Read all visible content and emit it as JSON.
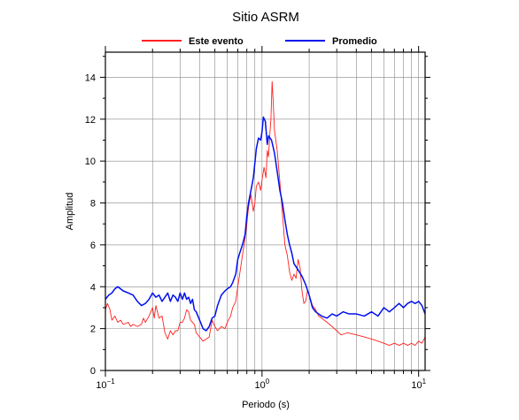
{
  "chart_data": {
    "type": "line",
    "title": "Sitio ASRM",
    "xlabel": "Periodo (s)",
    "ylabel": "Amplitud",
    "xscale": "log",
    "xlim": [
      0.1,
      11.0
    ],
    "ylim": [
      0,
      15.2
    ],
    "grid": true,
    "legend_position": "top",
    "x_ticks": [
      {
        "value": 0.1,
        "base": "10",
        "exp": "−1"
      },
      {
        "value": 1,
        "base": "10",
        "exp": "0"
      },
      {
        "value": 10,
        "base": "10",
        "exp": "1"
      }
    ],
    "y_ticks": [
      0,
      2,
      4,
      6,
      8,
      10,
      12,
      14
    ],
    "series": [
      {
        "name": "Este evento",
        "color": "#ff2020",
        "points": [
          [
            0.1,
            2.9
          ],
          [
            0.103,
            3.2
          ],
          [
            0.107,
            2.9
          ],
          [
            0.11,
            2.4
          ],
          [
            0.115,
            2.6
          ],
          [
            0.12,
            2.3
          ],
          [
            0.125,
            2.4
          ],
          [
            0.13,
            2.2
          ],
          [
            0.14,
            2.3
          ],
          [
            0.145,
            2.1
          ],
          [
            0.15,
            2.2
          ],
          [
            0.16,
            2.1
          ],
          [
            0.17,
            2.2
          ],
          [
            0.175,
            2.5
          ],
          [
            0.18,
            2.3
          ],
          [
            0.19,
            2.6
          ],
          [
            0.2,
            3.0
          ],
          [
            0.205,
            2.5
          ],
          [
            0.21,
            3.1
          ],
          [
            0.22,
            2.5
          ],
          [
            0.23,
            2.6
          ],
          [
            0.24,
            1.8
          ],
          [
            0.25,
            1.5
          ],
          [
            0.26,
            1.9
          ],
          [
            0.27,
            1.7
          ],
          [
            0.28,
            1.9
          ],
          [
            0.29,
            1.9
          ],
          [
            0.3,
            2.3
          ],
          [
            0.31,
            2.3
          ],
          [
            0.32,
            2.5
          ],
          [
            0.33,
            2.9
          ],
          [
            0.34,
            2.8
          ],
          [
            0.35,
            2.4
          ],
          [
            0.36,
            2.3
          ],
          [
            0.37,
            2.2
          ],
          [
            0.38,
            1.8
          ],
          [
            0.4,
            1.6
          ],
          [
            0.42,
            1.4
          ],
          [
            0.44,
            1.5
          ],
          [
            0.46,
            1.6
          ],
          [
            0.48,
            2.4
          ],
          [
            0.5,
            2.1
          ],
          [
            0.52,
            1.9
          ],
          [
            0.55,
            2.1
          ],
          [
            0.58,
            2.0
          ],
          [
            0.6,
            2.3
          ],
          [
            0.63,
            2.6
          ],
          [
            0.65,
            3.0
          ],
          [
            0.68,
            3.3
          ],
          [
            0.7,
            4.0
          ],
          [
            0.72,
            4.6
          ],
          [
            0.75,
            5.5
          ],
          [
            0.78,
            6.3
          ],
          [
            0.8,
            7.0
          ],
          [
            0.82,
            7.8
          ],
          [
            0.85,
            8.4
          ],
          [
            0.88,
            7.6
          ],
          [
            0.9,
            8.0
          ],
          [
            0.92,
            8.8
          ],
          [
            0.95,
            9.0
          ],
          [
            0.98,
            8.6
          ],
          [
            1.0,
            9.1
          ],
          [
            1.03,
            9.7
          ],
          [
            1.06,
            9.2
          ],
          [
            1.08,
            10.5
          ],
          [
            1.1,
            10.2
          ],
          [
            1.12,
            11.2
          ],
          [
            1.14,
            12.0
          ],
          [
            1.16,
            13.8
          ],
          [
            1.18,
            12.8
          ],
          [
            1.2,
            11.5
          ],
          [
            1.25,
            10.5
          ],
          [
            1.3,
            9.0
          ],
          [
            1.35,
            7.5
          ],
          [
            1.4,
            6.0
          ],
          [
            1.45,
            5.5
          ],
          [
            1.5,
            4.7
          ],
          [
            1.55,
            4.3
          ],
          [
            1.6,
            4.6
          ],
          [
            1.65,
            4.4
          ],
          [
            1.7,
            5.3
          ],
          [
            1.75,
            4.9
          ],
          [
            1.8,
            3.8
          ],
          [
            1.85,
            3.2
          ],
          [
            1.9,
            3.3
          ],
          [
            1.95,
            3.8
          ],
          [
            2.0,
            3.6
          ],
          [
            2.1,
            3.1
          ],
          [
            2.2,
            2.9
          ],
          [
            2.3,
            2.6
          ],
          [
            2.4,
            2.5
          ],
          [
            2.6,
            2.3
          ],
          [
            2.8,
            2.1
          ],
          [
            3.0,
            1.9
          ],
          [
            3.2,
            1.7
          ],
          [
            3.5,
            1.8
          ],
          [
            4.0,
            1.7
          ],
          [
            4.5,
            1.6
          ],
          [
            5.0,
            1.5
          ],
          [
            5.5,
            1.4
          ],
          [
            6.0,
            1.3
          ],
          [
            6.5,
            1.2
          ],
          [
            7.0,
            1.3
          ],
          [
            7.5,
            1.2
          ],
          [
            8.0,
            1.3
          ],
          [
            8.5,
            1.2
          ],
          [
            9.0,
            1.3
          ],
          [
            9.5,
            1.2
          ],
          [
            10.0,
            1.4
          ],
          [
            10.5,
            1.3
          ],
          [
            11.0,
            1.6
          ]
        ]
      },
      {
        "name": "Promedio",
        "color": "#0010ee",
        "points": [
          [
            0.1,
            3.4
          ],
          [
            0.105,
            3.6
          ],
          [
            0.11,
            3.7
          ],
          [
            0.115,
            3.9
          ],
          [
            0.12,
            4.0
          ],
          [
            0.13,
            3.8
          ],
          [
            0.14,
            3.7
          ],
          [
            0.15,
            3.6
          ],
          [
            0.16,
            3.3
          ],
          [
            0.17,
            3.1
          ],
          [
            0.18,
            3.2
          ],
          [
            0.19,
            3.4
          ],
          [
            0.2,
            3.7
          ],
          [
            0.21,
            3.5
          ],
          [
            0.22,
            3.6
          ],
          [
            0.23,
            3.3
          ],
          [
            0.24,
            3.5
          ],
          [
            0.25,
            3.7
          ],
          [
            0.26,
            3.3
          ],
          [
            0.27,
            3.6
          ],
          [
            0.28,
            3.5
          ],
          [
            0.29,
            3.3
          ],
          [
            0.3,
            3.7
          ],
          [
            0.31,
            3.4
          ],
          [
            0.32,
            3.7
          ],
          [
            0.33,
            3.4
          ],
          [
            0.34,
            3.5
          ],
          [
            0.35,
            3.2
          ],
          [
            0.36,
            3.4
          ],
          [
            0.37,
            2.9
          ],
          [
            0.38,
            2.8
          ],
          [
            0.4,
            2.4
          ],
          [
            0.42,
            2.0
          ],
          [
            0.44,
            1.9
          ],
          [
            0.46,
            2.1
          ],
          [
            0.48,
            2.5
          ],
          [
            0.5,
            2.6
          ],
          [
            0.52,
            3.1
          ],
          [
            0.55,
            3.6
          ],
          [
            0.58,
            3.8
          ],
          [
            0.6,
            3.9
          ],
          [
            0.63,
            4.0
          ],
          [
            0.65,
            4.2
          ],
          [
            0.68,
            4.6
          ],
          [
            0.7,
            5.3
          ],
          [
            0.72,
            5.6
          ],
          [
            0.75,
            6.0
          ],
          [
            0.78,
            6.5
          ],
          [
            0.8,
            7.4
          ],
          [
            0.82,
            8.0
          ],
          [
            0.85,
            8.6
          ],
          [
            0.88,
            9.2
          ],
          [
            0.9,
            9.9
          ],
          [
            0.92,
            10.6
          ],
          [
            0.95,
            11.1
          ],
          [
            0.98,
            11.0
          ],
          [
            1.0,
            11.4
          ],
          [
            1.02,
            12.1
          ],
          [
            1.05,
            11.9
          ],
          [
            1.08,
            10.8
          ],
          [
            1.1,
            11.2
          ],
          [
            1.15,
            11.0
          ],
          [
            1.2,
            10.4
          ],
          [
            1.25,
            9.5
          ],
          [
            1.3,
            8.6
          ],
          [
            1.35,
            8.0
          ],
          [
            1.4,
            7.2
          ],
          [
            1.45,
            6.5
          ],
          [
            1.5,
            6.0
          ],
          [
            1.55,
            5.6
          ],
          [
            1.6,
            5.1
          ],
          [
            1.7,
            4.8
          ],
          [
            1.8,
            4.5
          ],
          [
            1.9,
            4.1
          ],
          [
            2.0,
            3.6
          ],
          [
            2.1,
            3.0
          ],
          [
            2.2,
            2.8
          ],
          [
            2.4,
            2.6
          ],
          [
            2.6,
            2.5
          ],
          [
            2.8,
            2.7
          ],
          [
            3.0,
            2.6
          ],
          [
            3.3,
            2.8
          ],
          [
            3.6,
            2.7
          ],
          [
            4.0,
            2.7
          ],
          [
            4.5,
            2.6
          ],
          [
            5.0,
            2.8
          ],
          [
            5.5,
            2.6
          ],
          [
            6.0,
            3.0
          ],
          [
            6.5,
            2.8
          ],
          [
            7.0,
            3.0
          ],
          [
            7.5,
            3.2
          ],
          [
            8.0,
            3.0
          ],
          [
            8.5,
            3.2
          ],
          [
            9.0,
            3.3
          ],
          [
            9.5,
            3.2
          ],
          [
            10.0,
            3.3
          ],
          [
            10.5,
            3.1
          ],
          [
            11.0,
            2.7
          ]
        ]
      }
    ]
  }
}
